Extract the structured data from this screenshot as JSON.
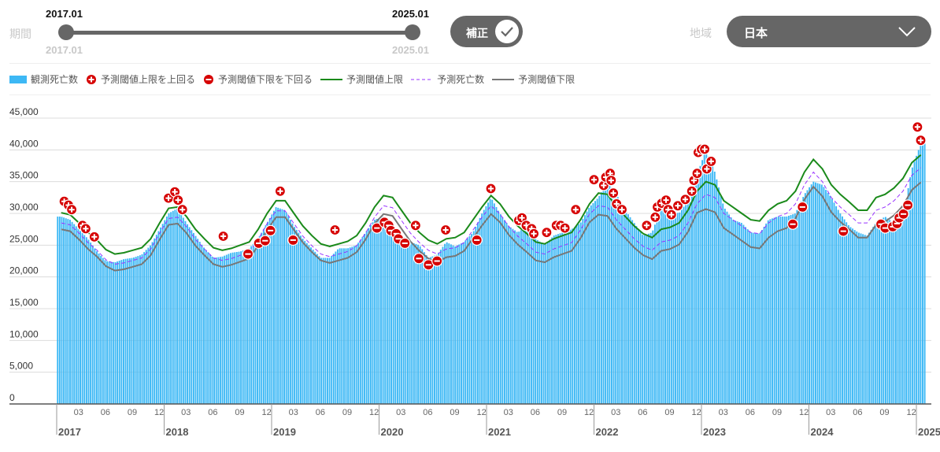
{
  "controls": {
    "period_label": "期間",
    "slider_start_value": "2017.01",
    "slider_end_value": "2025.01",
    "slider_min_label": "2017.01",
    "slider_max_label": "2025.01",
    "correction_toggle_label": "補正",
    "correction_on": true,
    "region_label": "地域",
    "region_selected": "日本"
  },
  "legend": [
    {
      "label": "観測死亡数",
      "kind": "bar",
      "color": "#3db8f5"
    },
    {
      "label": "予測閾値上限を上回る",
      "kind": "plus-marker",
      "color": "#d60000"
    },
    {
      "label": "予測閾値下限を下回る",
      "kind": "minus-marker",
      "color": "#d60000"
    },
    {
      "label": "予測閾値上限",
      "kind": "line",
      "color": "#1a8a1a"
    },
    {
      "label": "予測死亡数",
      "kind": "dashed",
      "color": "#9933ff"
    },
    {
      "label": "予測閾値下限",
      "kind": "line",
      "color": "#777777"
    }
  ],
  "chart_data": {
    "type": "bar",
    "title": "",
    "xlabel": "",
    "ylabel": "",
    "ylim": [
      0,
      45000
    ],
    "y_ticks": [
      "0",
      "5,000",
      "10,000",
      "15,000",
      "20,000",
      "25,000",
      "30,000",
      "35,000",
      "40,000",
      "45,000"
    ],
    "x_month_ticks": [
      "03",
      "06",
      "09",
      "12"
    ],
    "x_year_labels": [
      "2017",
      "2018",
      "2019",
      "2020",
      "2021",
      "2022",
      "2023",
      "2024",
      "2025"
    ],
    "start_month": "2017-01",
    "value_scale": 1000,
    "grid": true,
    "series": [
      {
        "name": "観測死亡数",
        "type": "bar",
        "color": "#3db8f5",
        "values": [
          29.5,
          29.0,
          27.5,
          26.0,
          24.0,
          22.5,
          22.3,
          22.8,
          23.0,
          23.5,
          25.0,
          27.5,
          30.0,
          30.8,
          28.5,
          26.5,
          24.5,
          23.0,
          23.2,
          23.8,
          24.0,
          24.5,
          26.0,
          28.5,
          31.0,
          30.5,
          28.0,
          26.0,
          24.5,
          23.0,
          23.0,
          24.5,
          24.5,
          25.0,
          27.0,
          29.0,
          29.5,
          28.0,
          26.5,
          25.5,
          25.0,
          23.0,
          23.5,
          25.5,
          24.8,
          25.5,
          27.0,
          30.0,
          32.5,
          30.0,
          28.0,
          27.0,
          28.0,
          26.0,
          25.0,
          26.5,
          27.0,
          27.5,
          28.5,
          31.0,
          32.5,
          35.0,
          33.0,
          30.5,
          28.5,
          26.5,
          27.0,
          31.0,
          30.5,
          30.0,
          32.0,
          36.0,
          40.0,
          36.5,
          31.0,
          29.0,
          28.5,
          27.0,
          26.8,
          29.0,
          29.5,
          29.5,
          30.0,
          33.0,
          35.0,
          34.5,
          32.5,
          30.0,
          28.0,
          27.0,
          26.5,
          28.5,
          29.5,
          28.5,
          29.5,
          37.0,
          41.0
        ]
      },
      {
        "name": "予測閾値上限",
        "type": "line",
        "color": "#1a8a1a",
        "values": [
          30.1,
          29.8,
          28.5,
          27.0,
          25.8,
          24.3,
          23.6,
          23.8,
          24.2,
          24.6,
          26.0,
          28.5,
          30.8,
          31.0,
          29.5,
          27.5,
          26.0,
          24.6,
          24.2,
          24.5,
          25.0,
          25.5,
          27.5,
          30.0,
          32.0,
          32.0,
          30.0,
          28.0,
          26.5,
          25.2,
          24.8,
          25.2,
          25.6,
          26.5,
          28.5,
          31.0,
          32.8,
          32.5,
          30.5,
          28.5,
          27.0,
          25.8,
          25.2,
          26.0,
          26.2,
          27.0,
          29.0,
          31.0,
          32.8,
          31.5,
          29.5,
          28.0,
          26.8,
          25.5,
          25.2,
          26.0,
          26.5,
          27.0,
          29.0,
          31.5,
          33.2,
          33.0,
          31.0,
          29.5,
          28.0,
          26.8,
          26.2,
          27.5,
          27.8,
          28.5,
          30.5,
          33.5,
          35.0,
          34.5,
          32.0,
          31.0,
          30.0,
          29.0,
          28.8,
          30.5,
          31.5,
          32.0,
          33.5,
          36.5,
          38.5,
          37.0,
          34.5,
          33.0,
          31.8,
          30.5,
          30.5,
          32.5,
          33.0,
          34.0,
          35.5,
          38.0,
          39.2
        ]
      },
      {
        "name": "予測死亡数",
        "type": "dashed",
        "color": "#9933ff",
        "values": [
          28.5,
          28.2,
          26.9,
          25.4,
          24.2,
          22.7,
          22.0,
          22.2,
          22.6,
          23.0,
          24.4,
          26.9,
          29.2,
          29.4,
          27.9,
          25.9,
          24.4,
          23.0,
          22.6,
          22.9,
          23.4,
          23.9,
          25.9,
          28.4,
          30.4,
          30.4,
          28.4,
          26.4,
          24.9,
          23.6,
          23.2,
          23.6,
          24.0,
          24.9,
          26.9,
          29.4,
          31.2,
          30.9,
          28.9,
          26.9,
          25.4,
          24.2,
          23.6,
          24.4,
          24.6,
          25.4,
          27.4,
          29.4,
          31.2,
          29.9,
          27.9,
          26.4,
          25.2,
          23.9,
          23.6,
          24.4,
          24.9,
          25.4,
          27.4,
          29.9,
          31.2,
          31.0,
          29.0,
          27.5,
          26.0,
          24.8,
          24.2,
          25.5,
          25.8,
          26.5,
          28.5,
          31.5,
          33.0,
          32.5,
          30.0,
          29.0,
          28.0,
          27.0,
          26.8,
          28.5,
          29.5,
          30.0,
          31.5,
          34.5,
          36.5,
          35.0,
          32.5,
          31.0,
          29.8,
          28.5,
          28.5,
          30.5,
          31.0,
          32.0,
          33.5,
          36.0,
          37.2
        ]
      },
      {
        "name": "予測閾値下限",
        "type": "line",
        "color": "#777777",
        "values": [
          27.5,
          27.2,
          25.9,
          24.4,
          23.2,
          21.7,
          21.0,
          21.2,
          21.6,
          22.0,
          23.4,
          25.9,
          28.2,
          28.4,
          26.9,
          24.9,
          23.4,
          22.0,
          21.6,
          21.9,
          22.4,
          22.9,
          24.9,
          27.4,
          29.4,
          29.4,
          27.4,
          25.4,
          23.9,
          22.6,
          22.2,
          22.6,
          23.0,
          23.9,
          25.9,
          28.4,
          29.9,
          29.6,
          27.6,
          25.6,
          24.1,
          22.9,
          22.3,
          23.1,
          23.3,
          24.1,
          26.1,
          28.1,
          29.9,
          28.6,
          26.6,
          25.1,
          23.9,
          22.6,
          22.3,
          23.1,
          23.6,
          24.1,
          26.1,
          28.6,
          29.8,
          29.6,
          27.6,
          26.1,
          24.6,
          23.4,
          22.8,
          24.1,
          24.4,
          25.1,
          27.1,
          30.1,
          30.7,
          30.2,
          27.7,
          26.7,
          25.7,
          24.7,
          24.5,
          26.2,
          27.2,
          27.7,
          29.2,
          32.2,
          34.2,
          32.7,
          30.2,
          28.7,
          27.5,
          26.2,
          26.2,
          28.2,
          28.7,
          29.7,
          31.2,
          33.7,
          34.9
        ]
      }
    ],
    "markers_above": [
      [
        2017.07,
        31.9
      ],
      [
        2017.11,
        31.3
      ],
      [
        2017.14,
        30.6
      ],
      [
        2017.24,
        28.1
      ],
      [
        2017.27,
        27.6
      ],
      [
        2017.35,
        26.3
      ],
      [
        2018.04,
        32.4
      ],
      [
        2018.1,
        33.4
      ],
      [
        2018.13,
        32.1
      ],
      [
        2018.17,
        30.6
      ],
      [
        2018.55,
        26.4
      ],
      [
        2019.08,
        33.5
      ],
      [
        2019.59,
        27.4
      ],
      [
        2020.34,
        28.1
      ],
      [
        2020.62,
        27.4
      ],
      [
        2021.04,
        33.9
      ],
      [
        2021.3,
        28.9
      ],
      [
        2021.33,
        29.3
      ],
      [
        2021.37,
        28.1
      ],
      [
        2021.42,
        27.6
      ],
      [
        2021.44,
        26.8
      ],
      [
        2021.56,
        27.0
      ],
      [
        2021.65,
        28.1
      ],
      [
        2021.69,
        28.1
      ],
      [
        2021.73,
        27.7
      ],
      [
        2021.83,
        30.6
      ],
      [
        2022.0,
        35.3
      ],
      [
        2022.09,
        34.4
      ],
      [
        2022.11,
        35.7
      ],
      [
        2022.15,
        36.3
      ],
      [
        2022.16,
        35.2
      ],
      [
        2022.18,
        33.2
      ],
      [
        2022.21,
        31.5
      ],
      [
        2022.26,
        30.6
      ],
      [
        2022.49,
        28.1
      ],
      [
        2022.57,
        29.4
      ],
      [
        2022.59,
        31.0
      ],
      [
        2022.63,
        31.6
      ],
      [
        2022.67,
        32.1
      ],
      [
        2022.69,
        30.6
      ],
      [
        2022.72,
        29.8
      ],
      [
        2022.78,
        31.2
      ],
      [
        2022.85,
        32.2
      ],
      [
        2022.91,
        33.5
      ],
      [
        2022.93,
        35.2
      ],
      [
        2022.96,
        36.3
      ],
      [
        2022.97,
        39.6
      ],
      [
        2023.0,
        40.1
      ],
      [
        2023.03,
        40.1
      ],
      [
        2023.05,
        37.0
      ],
      [
        2023.09,
        38.2
      ],
      [
        2025.01,
        43.6
      ],
      [
        2025.04,
        41.5
      ]
    ],
    "markers_below": [
      [
        2018.78,
        23.6
      ],
      [
        2018.88,
        25.3
      ],
      [
        2018.94,
        25.7
      ],
      [
        2018.99,
        27.3
      ],
      [
        2019.2,
        25.8
      ],
      [
        2019.98,
        27.7
      ],
      [
        2020.05,
        28.6
      ],
      [
        2020.09,
        28.1
      ],
      [
        2020.11,
        27.3
      ],
      [
        2020.16,
        26.8
      ],
      [
        2020.18,
        26.0
      ],
      [
        2020.24,
        25.3
      ],
      [
        2020.37,
        22.9
      ],
      [
        2020.46,
        21.9
      ],
      [
        2020.54,
        22.5
      ],
      [
        2020.91,
        25.8
      ],
      [
        2023.85,
        28.3
      ],
      [
        2023.94,
        31.0
      ],
      [
        2024.32,
        27.2
      ],
      [
        2024.67,
        28.3
      ],
      [
        2024.71,
        27.7
      ],
      [
        2024.78,
        27.9
      ],
      [
        2024.82,
        28.4
      ],
      [
        2024.84,
        29.3
      ],
      [
        2024.88,
        29.9
      ],
      [
        2024.92,
        31.3
      ]
    ]
  }
}
